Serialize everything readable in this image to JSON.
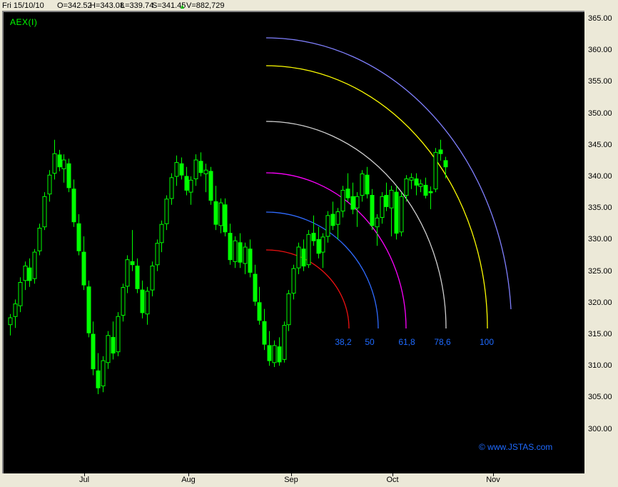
{
  "header": {
    "date": "Fri 15/10/10",
    "open_label": "O=342.52",
    "high_label": "H=343.08",
    "low_label": "L=339.74",
    "settle_label": "S=341.45",
    "up_arrow": "▲",
    "volume_label": "V=882,729",
    "arrow_color": "#00b400"
  },
  "chart": {
    "symbol": "AEX(I)",
    "watermark": "© www.JSTAS.com",
    "background": "#000000",
    "candle_color": "#00ff00",
    "blue_text_color": "#1e6aff",
    "chrome_color": "#ece9d8"
  },
  "chart_data": {
    "type": "candlestick",
    "title": "AEX(I)",
    "x_axis": {
      "tick_labels": [
        "Jul",
        "Aug",
        "Sep",
        "Oct",
        "Nov"
      ]
    },
    "y_axis": {
      "min": 300,
      "max": 365,
      "step": 5,
      "tick_labels": [
        "365.00",
        "360.00",
        "355.00",
        "350.00",
        "345.00",
        "340.00",
        "335.00",
        "330.00",
        "325.00",
        "320.00",
        "315.00",
        "310.00",
        "305.00",
        "300.00"
      ]
    },
    "last_quote": {
      "open": 342.52,
      "high": 343.08,
      "low": 339.74,
      "settle": 341.45,
      "volume": 882729,
      "direction": "up"
    },
    "ohlc": [
      [
        316.5,
        318.2,
        314.8,
        317.6
      ],
      [
        317.8,
        320.5,
        316.0,
        319.8
      ],
      [
        319.5,
        324.0,
        318.5,
        323.2
      ],
      [
        323.5,
        326.5,
        322.0,
        325.8
      ],
      [
        325.5,
        327.0,
        322.5,
        323.5
      ],
      [
        323.8,
        328.5,
        323.0,
        328.0
      ],
      [
        328.2,
        332.5,
        327.5,
        331.8
      ],
      [
        332.0,
        337.5,
        331.5,
        336.8
      ],
      [
        337.2,
        341.0,
        336.0,
        340.2
      ],
      [
        340.5,
        345.8,
        339.5,
        343.6
      ],
      [
        343.4,
        344.2,
        340.8,
        341.5
      ],
      [
        341.2,
        343.5,
        339.0,
        342.6
      ],
      [
        342.0,
        342.8,
        337.5,
        338.2
      ],
      [
        338.0,
        339.5,
        332.0,
        332.8
      ],
      [
        332.5,
        334.0,
        327.5,
        328.2
      ],
      [
        328.0,
        330.5,
        322.0,
        322.8
      ],
      [
        322.5,
        323.5,
        314.5,
        315.2
      ],
      [
        315.0,
        317.0,
        308.5,
        309.5
      ],
      [
        309.2,
        312.0,
        305.5,
        306.5
      ],
      [
        306.8,
        311.5,
        305.8,
        310.8
      ],
      [
        310.5,
        315.5,
        309.5,
        314.8
      ],
      [
        314.5,
        317.0,
        311.0,
        312.0
      ],
      [
        312.2,
        318.5,
        311.5,
        317.8
      ],
      [
        318.0,
        323.0,
        317.0,
        322.4
      ],
      [
        322.6,
        327.5,
        321.5,
        326.8
      ],
      [
        326.5,
        331.5,
        325.0,
        326.0
      ],
      [
        325.8,
        327.0,
        321.5,
        322.2
      ],
      [
        322.0,
        323.5,
        317.5,
        318.4
      ],
      [
        318.2,
        322.5,
        316.5,
        321.8
      ],
      [
        322.0,
        326.5,
        321.0,
        325.8
      ],
      [
        326.0,
        330.0,
        325.0,
        329.4
      ],
      [
        329.5,
        333.0,
        328.0,
        332.4
      ],
      [
        332.5,
        337.0,
        331.5,
        336.4
      ],
      [
        336.5,
        340.5,
        335.5,
        339.8
      ],
      [
        340.0,
        343.3,
        338.5,
        342.2
      ],
      [
        342.0,
        343.0,
        339.5,
        340.2
      ],
      [
        340.0,
        341.5,
        337.0,
        337.8
      ],
      [
        337.5,
        340.0,
        335.5,
        339.4
      ],
      [
        339.6,
        343.5,
        338.5,
        342.6
      ],
      [
        342.4,
        343.8,
        340.0,
        340.6
      ],
      [
        340.4,
        342.0,
        337.5,
        341.0
      ],
      [
        340.8,
        341.5,
        335.5,
        336.2
      ],
      [
        336.0,
        338.5,
        331.5,
        332.4
      ],
      [
        332.2,
        336.5,
        331.0,
        335.8
      ],
      [
        335.5,
        336.5,
        330.5,
        331.2
      ],
      [
        331.0,
        332.5,
        326.0,
        326.8
      ],
      [
        326.5,
        330.5,
        325.5,
        329.8
      ],
      [
        329.5,
        331.0,
        325.5,
        326.4
      ],
      [
        326.2,
        329.5,
        324.5,
        328.8
      ],
      [
        328.5,
        330.0,
        324.0,
        324.8
      ],
      [
        324.5,
        326.0,
        319.5,
        320.2
      ],
      [
        320.0,
        322.5,
        316.5,
        317.2
      ],
      [
        317.0,
        319.0,
        312.5,
        313.4
      ],
      [
        313.2,
        315.5,
        310.0,
        310.8
      ],
      [
        310.5,
        314.0,
        309.8,
        313.2
      ],
      [
        313.0,
        314.5,
        310.0,
        310.6
      ],
      [
        311.0,
        317.0,
        310.5,
        316.4
      ],
      [
        316.5,
        322.0,
        315.5,
        321.4
      ],
      [
        321.5,
        326.0,
        320.5,
        325.4
      ],
      [
        325.5,
        329.5,
        324.5,
        328.8
      ],
      [
        328.5,
        330.0,
        325.0,
        325.8
      ],
      [
        326.0,
        331.5,
        325.5,
        330.8
      ],
      [
        331.0,
        333.8,
        329.0,
        329.8
      ],
      [
        330.0,
        332.0,
        327.0,
        327.8
      ],
      [
        328.0,
        331.0,
        325.5,
        330.4
      ],
      [
        330.5,
        334.5,
        329.5,
        333.8
      ],
      [
        334.0,
        336.0,
        331.5,
        332.2
      ],
      [
        332.4,
        335.0,
        330.0,
        334.4
      ],
      [
        334.5,
        338.5,
        333.5,
        337.8
      ],
      [
        338.0,
        340.5,
        336.0,
        336.6
      ],
      [
        336.8,
        339.0,
        334.0,
        334.8
      ],
      [
        335.0,
        337.5,
        332.0,
        336.8
      ],
      [
        337.0,
        341.0,
        336.0,
        340.4
      ],
      [
        340.2,
        341.5,
        336.5,
        337.2
      ],
      [
        337.0,
        338.0,
        331.5,
        332.2
      ],
      [
        332.0,
        334.0,
        329.0,
        333.4
      ],
      [
        333.5,
        337.5,
        332.5,
        336.8
      ],
      [
        337.0,
        339.0,
        334.5,
        335.2
      ],
      [
        335.0,
        338.5,
        330.5,
        337.8
      ],
      [
        337.5,
        338.5,
        330.0,
        331.0
      ],
      [
        331.2,
        337.5,
        330.5,
        336.8
      ],
      [
        337.0,
        340.2,
        336.0,
        339.6
      ],
      [
        339.4,
        340.5,
        338.0,
        339.8
      ],
      [
        339.6,
        340.5,
        337.0,
        338.6
      ],
      [
        338.4,
        339.5,
        337.5,
        338.8
      ],
      [
        338.6,
        339.8,
        336.5,
        337.0
      ],
      [
        337.6,
        338.4,
        334.8,
        337.4
      ],
      [
        338.0,
        344.5,
        337.5,
        343.8
      ],
      [
        344.2,
        345.8,
        342.5,
        343.6
      ],
      [
        342.5,
        343.1,
        339.7,
        341.5
      ]
    ],
    "fib_arcs": {
      "labels": [
        "38,2",
        "50",
        "61,8",
        "78,6",
        "100"
      ],
      "ratios_pct": [
        38.2,
        50,
        61.8,
        78.6,
        100
      ],
      "colors": [
        "#ee1111",
        "#2f6bff",
        "#ff00ff",
        "#d0d0d0",
        "#ffff00"
      ],
      "outer_arc_color": "#8080ff",
      "label_color": "#1e6aff"
    }
  }
}
